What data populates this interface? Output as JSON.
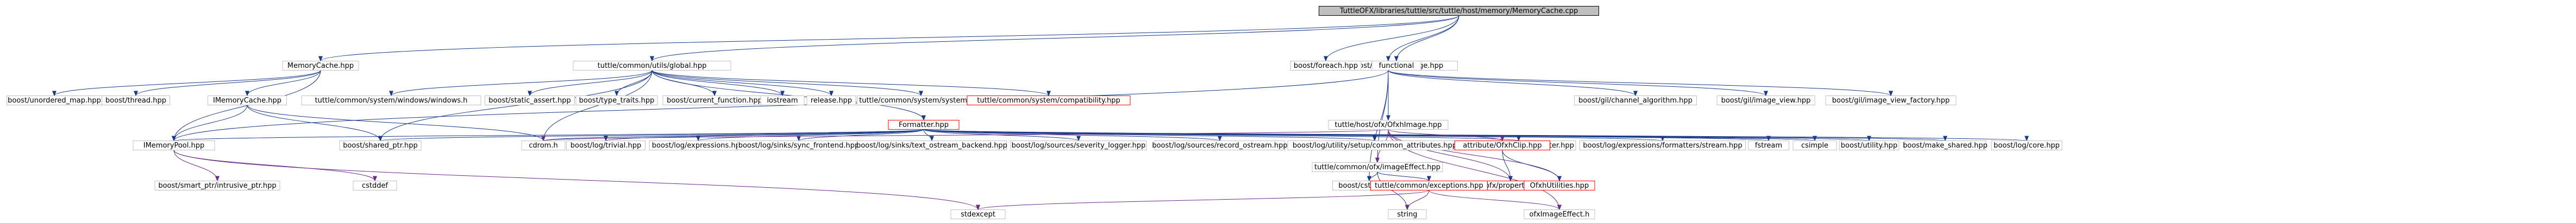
{
  "nodes": [
    {
      "id": "root",
      "label": "TuttleOFX/libraries/tuttle/src/tuttle/host/memory/MemoryCache.cpp",
      "style": "root"
    },
    {
      "id": "memcache",
      "label": "MemoryCache.hpp",
      "style": "normal"
    },
    {
      "id": "global",
      "label": "tuttle/common/utils/global.hpp",
      "style": "normal"
    },
    {
      "id": "attrimg",
      "label": "tuttle/host/attribute/Image.hpp",
      "style": "normal"
    },
    {
      "id": "foreach",
      "label": "boost/foreach.hpp",
      "style": "normal"
    },
    {
      "id": "functional",
      "label": "functional",
      "style": "normal"
    },
    {
      "id": "unordered",
      "label": "boost/unordered_map.hpp",
      "style": "normal"
    },
    {
      "id": "thread",
      "label": "boost/thread.hpp",
      "style": "normal"
    },
    {
      "id": "imemcache",
      "label": "IMemoryCache.hpp",
      "style": "normal"
    },
    {
      "id": "winhdr",
      "label": "tuttle/common/system/windows/windows.h",
      "style": "normal"
    },
    {
      "id": "static_assert",
      "label": "boost/static_assert.hpp",
      "style": "normal"
    },
    {
      "id": "type_traits",
      "label": "boost/type_traits.hpp",
      "style": "normal"
    },
    {
      "id": "current_function",
      "label": "boost/current_function.hpp",
      "style": "normal"
    },
    {
      "id": "iostream",
      "label": "iostream",
      "style": "normal"
    },
    {
      "id": "release",
      "label": "release.hpp",
      "style": "normal"
    },
    {
      "id": "system",
      "label": "tuttle/common/system/system.hpp",
      "style": "normal"
    },
    {
      "id": "compat",
      "label": "tuttle/common/system/compatibility.hpp",
      "style": "red"
    },
    {
      "id": "formatter",
      "label": "Formatter.hpp",
      "style": "red"
    },
    {
      "id": "channel_algo",
      "label": "boost/gil/channel_algorithm.hpp",
      "style": "normal"
    },
    {
      "id": "image_view",
      "label": "boost/gil/image_view.hpp",
      "style": "normal"
    },
    {
      "id": "image_view_factory",
      "label": "boost/gil/image_view_factory.hpp",
      "style": "normal"
    },
    {
      "id": "ofximage",
      "label": "tuttle/host/ofx/OfxhImage.hpp",
      "style": "normal"
    },
    {
      "id": "imempool",
      "label": "IMemoryPool.hpp",
      "style": "normal"
    },
    {
      "id": "shared_ptr",
      "label": "boost/shared_ptr.hpp",
      "style": "normal"
    },
    {
      "id": "cstddef",
      "label": "cstddef",
      "style": "normal"
    },
    {
      "id": "intrusive",
      "label": "boost/smart_ptr/intrusive_ptr.hpp",
      "style": "normal"
    },
    {
      "id": "cdrom",
      "label": "cdrom.h",
      "style": "normal"
    },
    {
      "id": "cstdint",
      "label": "boost/cstdint.hpp",
      "style": "normal"
    },
    {
      "id": "log_trivial",
      "label": "boost/log/trivial.hpp",
      "style": "normal"
    },
    {
      "id": "log_expressions",
      "label": "boost/log/expressions.hpp",
      "style": "normal"
    },
    {
      "id": "sync_frontend",
      "label": "boost/log/sinks/sync_frontend.hpp",
      "style": "normal"
    },
    {
      "id": "text_ostream",
      "label": "boost/log/sinks/text_ostream_backend.hpp",
      "style": "normal"
    },
    {
      "id": "severity_logger",
      "label": "boost/log/sources/severity_logger.hpp",
      "style": "normal"
    },
    {
      "id": "record_ostream",
      "label": "boost/log/sources/record_ostream.hpp",
      "style": "normal"
    },
    {
      "id": "common_attrs",
      "label": "boost/log/utility/setup/common_attributes.hpp",
      "style": "normal"
    },
    {
      "id": "empty_deleter",
      "label": "boost/utility/empty_deleter.hpp",
      "style": "normal"
    },
    {
      "id": "fmt_stream",
      "label": "boost/log/expressions/formatters/stream.hpp",
      "style": "normal"
    },
    {
      "id": "fstream",
      "label": "fstream",
      "style": "normal"
    },
    {
      "id": "csimple",
      "label": "csimple",
      "style": "normal"
    },
    {
      "id": "utility",
      "label": "boost/utility.hpp",
      "style": "normal"
    },
    {
      "id": "make_shared",
      "label": "boost/make_shared.hpp",
      "style": "normal"
    },
    {
      "id": "log_core",
      "label": "boost/log/core.hpp",
      "style": "normal"
    },
    {
      "id": "ofximageeffect",
      "label": "tuttle/common/ofx/imageEffect.hpp",
      "style": "normal"
    },
    {
      "id": "attrclip",
      "label": "attribute/OfxhClip.hpp",
      "style": "red"
    },
    {
      "id": "propset",
      "label": "tuttle/host/ofx/property/OfxhSet.hpp",
      "style": "red"
    },
    {
      "id": "ofxhutil",
      "label": "OfxhUtilities.hpp",
      "style": "red"
    },
    {
      "id": "exceptions",
      "label": "tuttle/common/exceptions.hpp",
      "style": "red"
    },
    {
      "id": "stdexcept",
      "label": "stdexcept",
      "style": "normal"
    },
    {
      "id": "string",
      "label": "string",
      "style": "normal"
    },
    {
      "id": "ofxImageEffect",
      "label": "ofxImageEffect.h",
      "style": "normal"
    }
  ],
  "edges": [
    [
      "root",
      "memcache"
    ],
    [
      "root",
      "global"
    ],
    [
      "root",
      "attrimg"
    ],
    [
      "root",
      "foreach"
    ],
    [
      "root",
      "functional"
    ],
    [
      "memcache",
      "unordered"
    ],
    [
      "memcache",
      "thread"
    ],
    [
      "memcache",
      "imemcache"
    ],
    [
      "memcache",
      "imempool"
    ],
    [
      "imemcache",
      "imempool"
    ],
    [
      "imemcache",
      "shared_ptr"
    ],
    [
      "imemcache",
      "cdrom"
    ],
    [
      "imempool",
      "cstddef"
    ],
    [
      "imempool",
      "intrusive"
    ],
    [
      "imempool",
      "stdexcept"
    ],
    [
      "global",
      "winhdr"
    ],
    [
      "global",
      "static_assert"
    ],
    [
      "global",
      "type_traits"
    ],
    [
      "global",
      "current_function"
    ],
    [
      "global",
      "iostream"
    ],
    [
      "global",
      "release"
    ],
    [
      "global",
      "system"
    ],
    [
      "global",
      "compat"
    ],
    [
      "global",
      "formatter"
    ],
    [
      "global",
      "cdrom"
    ],
    [
      "global",
      "shared_ptr"
    ],
    [
      "formatter",
      "log_trivial"
    ],
    [
      "formatter",
      "log_expressions"
    ],
    [
      "formatter",
      "sync_frontend"
    ],
    [
      "formatter",
      "text_ostream"
    ],
    [
      "formatter",
      "severity_logger"
    ],
    [
      "formatter",
      "record_ostream"
    ],
    [
      "formatter",
      "common_attrs"
    ],
    [
      "formatter",
      "empty_deleter"
    ],
    [
      "formatter",
      "fmt_stream"
    ],
    [
      "formatter",
      "fstream"
    ],
    [
      "formatter",
      "csimple"
    ],
    [
      "formatter",
      "utility"
    ],
    [
      "formatter",
      "make_shared"
    ],
    [
      "formatter",
      "log_core"
    ],
    [
      "formatter",
      "imempool"
    ],
    [
      "formatter",
      "shared_ptr"
    ],
    [
      "formatter",
      "cdrom"
    ],
    [
      "attrimg",
      "channel_algo"
    ],
    [
      "attrimg",
      "image_view"
    ],
    [
      "attrimg",
      "image_view_factory"
    ],
    [
      "attrimg",
      "ofximage"
    ],
    [
      "attrimg",
      "imempool"
    ],
    [
      "attrimg",
      "cstdint"
    ],
    [
      "attrimg",
      "ofximageeffect"
    ],
    [
      "ofximage",
      "ofximageeffect"
    ],
    [
      "ofximage",
      "attrclip"
    ],
    [
      "ofximage",
      "propset"
    ],
    [
      "ofximage",
      "ofxhutil"
    ],
    [
      "ofximage",
      "ofxImageEffect"
    ],
    [
      "ofximage",
      "cdrom"
    ],
    [
      "attrclip",
      "propset"
    ],
    [
      "attrclip",
      "ofxhutil"
    ],
    [
      "ofximageeffect",
      "cstdint"
    ],
    [
      "ofximageeffect",
      "exceptions"
    ],
    [
      "ofximageeffect",
      "string"
    ],
    [
      "exceptions",
      "stdexcept"
    ],
    [
      "exceptions",
      "string"
    ],
    [
      "exceptions",
      "ofxImageEffect"
    ]
  ]
}
